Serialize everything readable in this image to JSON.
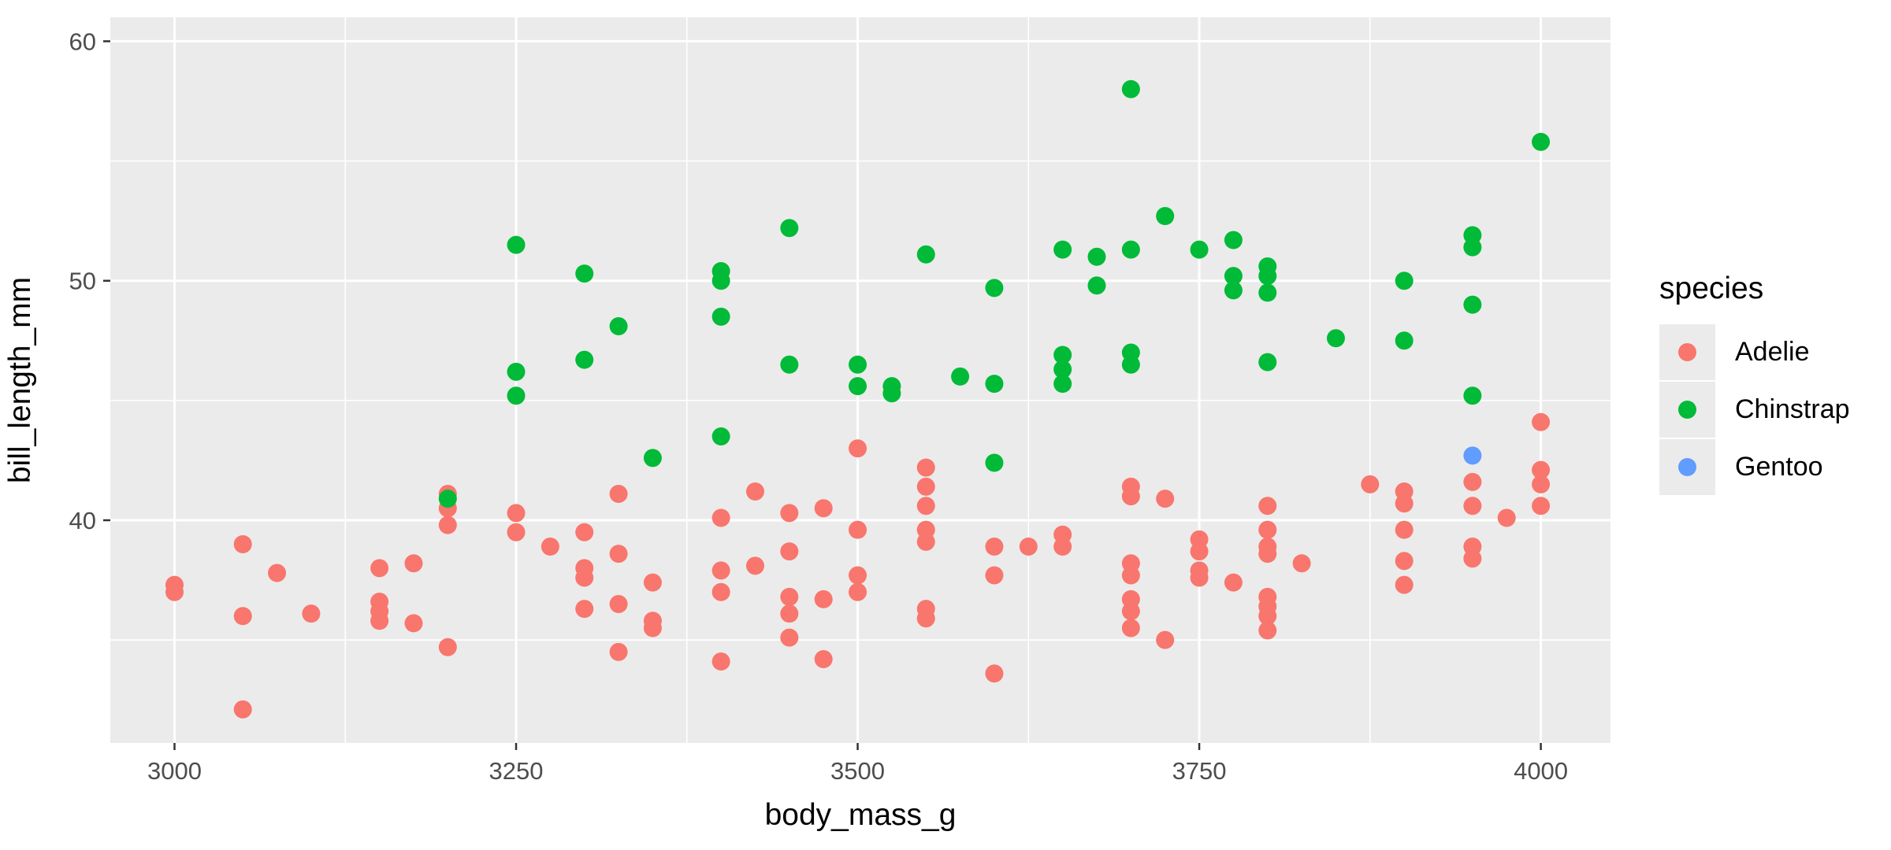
{
  "chart_data": {
    "type": "scatter",
    "title": "",
    "xlabel": "body_mass_g",
    "ylabel": "bill_length_mm",
    "xlim": [
      2953,
      4051
    ],
    "ylim": [
      30.7,
      61.0
    ],
    "x_ticks": [
      3000,
      3250,
      3500,
      3750,
      4000
    ],
    "y_ticks": [
      40,
      50,
      60
    ],
    "x_minor": [
      3125,
      3375,
      3625,
      3875
    ],
    "y_minor": [
      35,
      45,
      55
    ],
    "grid": true,
    "legend": {
      "title": "species",
      "position": "right",
      "entries": [
        {
          "label": "Adelie",
          "color": "#F8766D"
        },
        {
          "label": "Chinstrap",
          "color": "#00BA38"
        },
        {
          "label": "Gentoo",
          "color": "#619CFF"
        }
      ]
    },
    "series": [
      {
        "name": "Adelie",
        "color": "#F8766D",
        "points": [
          [
            3000,
            37.3
          ],
          [
            3000,
            37.0
          ],
          [
            3050,
            39.0
          ],
          [
            3050,
            36.0
          ],
          [
            3050,
            32.1
          ],
          [
            3075,
            37.8
          ],
          [
            3100,
            36.1
          ],
          [
            3150,
            38.0
          ],
          [
            3150,
            36.6
          ],
          [
            3150,
            36.2
          ],
          [
            3150,
            35.8
          ],
          [
            3175,
            38.2
          ],
          [
            3175,
            35.7
          ],
          [
            3200,
            41.1
          ],
          [
            3200,
            40.5
          ],
          [
            3200,
            39.8
          ],
          [
            3200,
            34.7
          ],
          [
            3250,
            40.3
          ],
          [
            3250,
            39.5
          ],
          [
            3275,
            38.9
          ],
          [
            3300,
            39.5
          ],
          [
            3300,
            38.0
          ],
          [
            3300,
            37.6
          ],
          [
            3300,
            36.3
          ],
          [
            3325,
            41.1
          ],
          [
            3325,
            38.6
          ],
          [
            3325,
            36.5
          ],
          [
            3325,
            34.5
          ],
          [
            3350,
            37.4
          ],
          [
            3350,
            35.8
          ],
          [
            3350,
            35.5
          ],
          [
            3400,
            40.1
          ],
          [
            3400,
            37.9
          ],
          [
            3400,
            37.0
          ],
          [
            3400,
            34.1
          ],
          [
            3425,
            41.2
          ],
          [
            3425,
            38.1
          ],
          [
            3450,
            40.3
          ],
          [
            3450,
            38.7
          ],
          [
            3450,
            36.8
          ],
          [
            3450,
            36.1
          ],
          [
            3450,
            35.1
          ],
          [
            3475,
            40.5
          ],
          [
            3475,
            36.7
          ],
          [
            3475,
            34.2
          ],
          [
            3500,
            43.0
          ],
          [
            3500,
            39.6
          ],
          [
            3500,
            37.7
          ],
          [
            3500,
            37.0
          ],
          [
            3550,
            42.2
          ],
          [
            3550,
            41.4
          ],
          [
            3550,
            40.6
          ],
          [
            3550,
            39.6
          ],
          [
            3550,
            39.1
          ],
          [
            3550,
            36.3
          ],
          [
            3550,
            35.9
          ],
          [
            3600,
            38.9
          ],
          [
            3600,
            37.7
          ],
          [
            3600,
            33.6
          ],
          [
            3625,
            38.9
          ],
          [
            3650,
            39.4
          ],
          [
            3650,
            38.9
          ],
          [
            3700,
            41.4
          ],
          [
            3700,
            41.0
          ],
          [
            3700,
            38.2
          ],
          [
            3700,
            37.7
          ],
          [
            3700,
            36.7
          ],
          [
            3700,
            36.2
          ],
          [
            3700,
            35.5
          ],
          [
            3725,
            40.9
          ],
          [
            3725,
            35.0
          ],
          [
            3750,
            39.2
          ],
          [
            3750,
            38.7
          ],
          [
            3750,
            37.9
          ],
          [
            3750,
            37.6
          ],
          [
            3775,
            37.4
          ],
          [
            3800,
            40.6
          ],
          [
            3800,
            39.6
          ],
          [
            3800,
            38.9
          ],
          [
            3800,
            38.6
          ],
          [
            3800,
            36.8
          ],
          [
            3800,
            36.4
          ],
          [
            3800,
            36.0
          ],
          [
            3800,
            35.4
          ],
          [
            3825,
            38.2
          ],
          [
            3875,
            41.5
          ],
          [
            3900,
            41.2
          ],
          [
            3900,
            40.7
          ],
          [
            3900,
            39.6
          ],
          [
            3900,
            38.3
          ],
          [
            3900,
            37.3
          ],
          [
            3950,
            41.6
          ],
          [
            3950,
            40.6
          ],
          [
            3950,
            38.9
          ],
          [
            3950,
            38.4
          ],
          [
            3975,
            40.1
          ],
          [
            4000,
            44.1
          ],
          [
            4000,
            42.1
          ],
          [
            4000,
            41.5
          ],
          [
            4000,
            40.6
          ]
        ]
      },
      {
        "name": "Chinstrap",
        "color": "#00BA38",
        "points": [
          [
            3200,
            40.9
          ],
          [
            3250,
            51.5
          ],
          [
            3250,
            46.2
          ],
          [
            3250,
            45.2
          ],
          [
            3300,
            50.3
          ],
          [
            3300,
            46.7
          ],
          [
            3325,
            48.1
          ],
          [
            3350,
            42.6
          ],
          [
            3400,
            50.4
          ],
          [
            3400,
            50.0
          ],
          [
            3400,
            48.5
          ],
          [
            3400,
            43.5
          ],
          [
            3450,
            52.2
          ],
          [
            3450,
            46.5
          ],
          [
            3500,
            46.5
          ],
          [
            3500,
            45.6
          ],
          [
            3525,
            45.6
          ],
          [
            3525,
            45.3
          ],
          [
            3550,
            51.1
          ],
          [
            3575,
            46.0
          ],
          [
            3600,
            49.7
          ],
          [
            3600,
            45.7
          ],
          [
            3600,
            42.4
          ],
          [
            3650,
            51.3
          ],
          [
            3650,
            46.9
          ],
          [
            3650,
            46.3
          ],
          [
            3650,
            45.7
          ],
          [
            3675,
            51.0
          ],
          [
            3675,
            49.8
          ],
          [
            3700,
            58.0
          ],
          [
            3700,
            51.3
          ],
          [
            3700,
            47.0
          ],
          [
            3700,
            46.5
          ],
          [
            3725,
            52.7
          ],
          [
            3750,
            51.3
          ],
          [
            3775,
            51.7
          ],
          [
            3775,
            50.2
          ],
          [
            3775,
            49.6
          ],
          [
            3800,
            50.6
          ],
          [
            3800,
            50.2
          ],
          [
            3800,
            49.5
          ],
          [
            3800,
            46.6
          ],
          [
            3850,
            47.6
          ],
          [
            3900,
            50.0
          ],
          [
            3900,
            47.5
          ],
          [
            3950,
            51.9
          ],
          [
            3950,
            51.4
          ],
          [
            3950,
            49.0
          ],
          [
            3950,
            45.2
          ],
          [
            4000,
            55.8
          ]
        ]
      },
      {
        "name": "Gentoo",
        "color": "#619CFF",
        "points": [
          [
            3950,
            42.7
          ]
        ]
      }
    ]
  },
  "colors": {
    "panel": "#EBEBEB",
    "grid": "#FFFFFF",
    "tick_text": "#4D4D4D",
    "tick_mark": "#333333",
    "axis_title": "#000000",
    "background": "#FFFFFF"
  }
}
